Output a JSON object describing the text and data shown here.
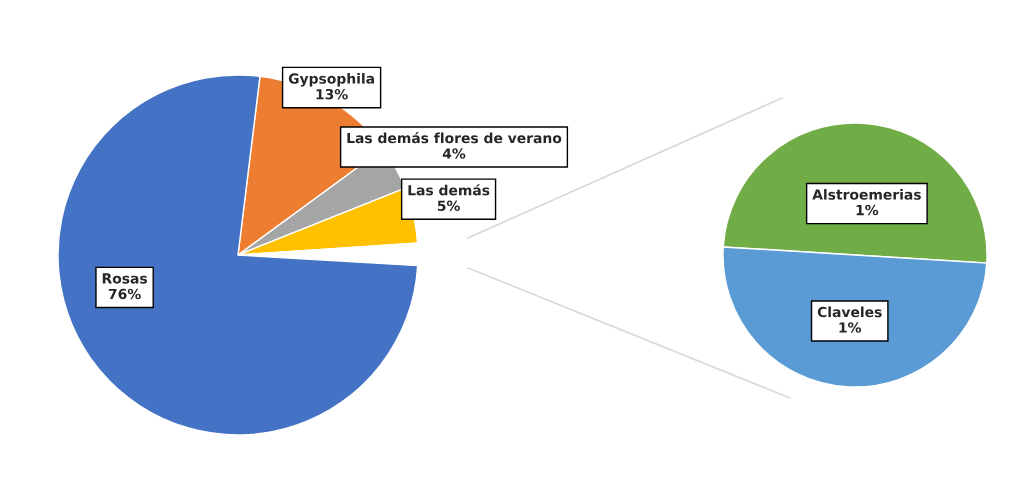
{
  "chart_data": [
    {
      "type": "pie",
      "categories": [
        "Gypsophila",
        "Las demás flores de verano",
        "Las demás",
        null,
        "Rosas"
      ],
      "values": [
        13,
        4,
        5,
        2,
        76
      ],
      "colors": [
        "#ed7d31",
        "#a5a5a5",
        "#ffc000",
        "#ffffff",
        "#4472c4"
      ],
      "value_labels": [
        "13%",
        "4%",
        "5%",
        null,
        "76%"
      ]
    },
    {
      "type": "pie",
      "categories": [
        "Alstroemerias",
        "Claveles"
      ],
      "values": [
        1,
        1
      ],
      "colors": [
        "#70ad47",
        "#5b9bd5"
      ],
      "value_labels": [
        "1%",
        "1%"
      ]
    }
  ]
}
